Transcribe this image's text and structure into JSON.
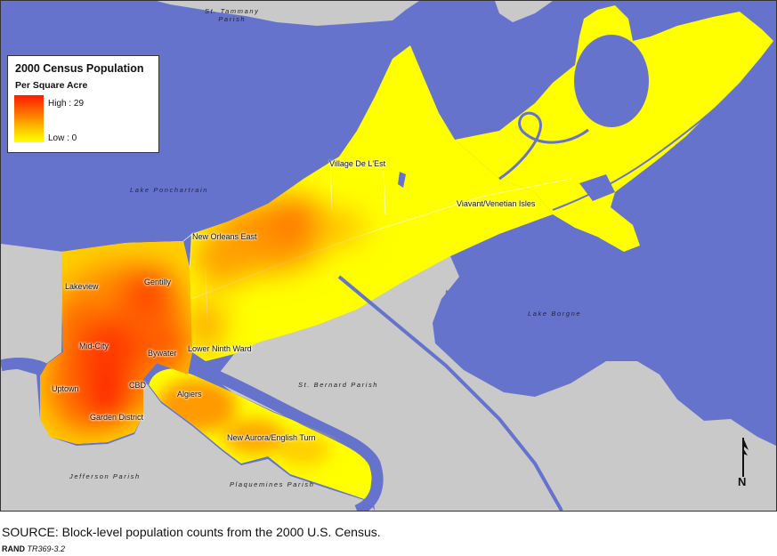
{
  "legend": {
    "title": "2000 Census Population",
    "subtitle": "Per Square Acre",
    "high_label": "High : 29",
    "low_label": "Low : 0",
    "high_color": "#ff1a00",
    "low_color": "#ffff00"
  },
  "neighborhoods": {
    "lakeview": "Lakeview",
    "gentilly": "Gentilly",
    "mid_city": "Mid-City",
    "bywater": "Bywater",
    "lower_ninth_ward": "Lower Ninth Ward",
    "uptown": "Uptown",
    "cbd": "CBD",
    "garden_district": "Garden District",
    "algiers": "Algiers",
    "new_aurora": "New Aurora/English Turn",
    "new_orleans_east": "New Orleans East",
    "village_de_lest": "Village De L'Est",
    "viavant": "Viavant/Venetian Isles"
  },
  "parishes": {
    "st_tammany": [
      "St. Tammany",
      "Parish"
    ],
    "st_bernard": "St. Bernard Parish",
    "jefferson": "Jefferson Parish",
    "plaquemines": "Plaquemines Parish"
  },
  "water": {
    "lake_pontchartrain": "Lake Ponchartrain",
    "lake_borgne": "Lake Borgne"
  },
  "north_arrow": {
    "label": "N",
    "icon": "north-arrow-icon"
  },
  "colors": {
    "water": "#6673cc",
    "land": "#c9c9c9",
    "parish_land": "#ffff00"
  },
  "footer": {
    "source": "SOURCE: Block-level population counts from the 2000 U.S. Census.",
    "brand": "RAND",
    "doc_id": "TR369-3.2"
  }
}
